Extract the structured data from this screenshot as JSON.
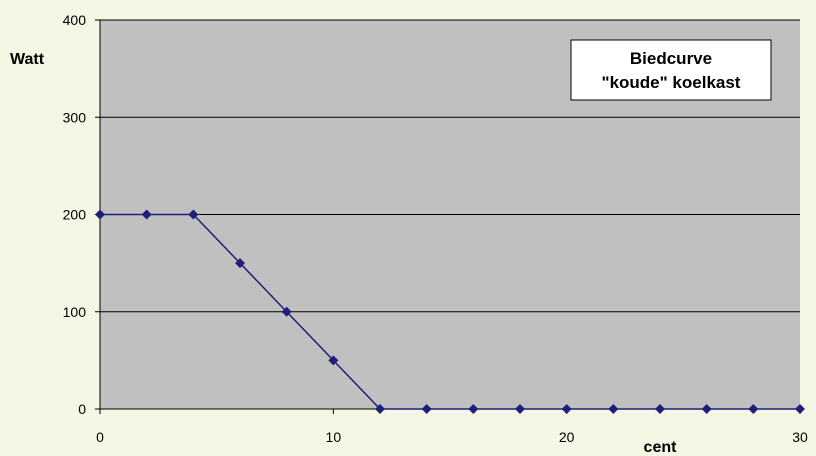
{
  "colors": {
    "page_background": "#f6f6e4",
    "plot_background": "#c0c0c0",
    "gridline": "#000000",
    "series": "#1f1f7a"
  },
  "chart_data": {
    "type": "line",
    "title": "",
    "legend_lines": [
      "Biedcurve",
      "\"koude\" koelkast"
    ],
    "legend_position": "top-right",
    "xlabel": "cent",
    "ylabel": "Watt",
    "xlim": [
      0,
      30
    ],
    "ylim": [
      0,
      400
    ],
    "x_ticks": [
      0,
      10,
      20,
      30
    ],
    "y_ticks": [
      0,
      100,
      200,
      300,
      400
    ],
    "grid": "horizontal",
    "marker": "diamond",
    "series": [
      {
        "x": [
          0,
          2,
          4,
          6,
          8,
          10,
          12,
          14,
          16,
          18,
          20,
          22,
          24,
          26,
          28,
          30
        ],
        "y": [
          200,
          200,
          200,
          150,
          100,
          50,
          0,
          0,
          0,
          0,
          0,
          0,
          0,
          0,
          0,
          0
        ]
      }
    ]
  }
}
